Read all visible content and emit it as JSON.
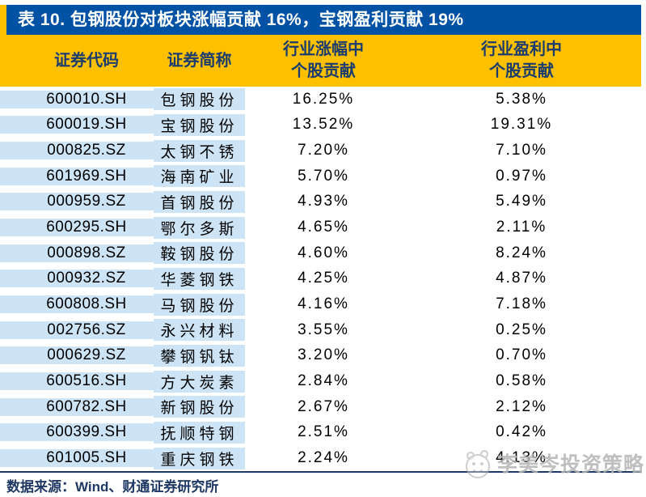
{
  "title": "表 10. 包钢股份对板块涨幅贡献 16%，宝钢盈利贡献 19%",
  "table": {
    "headers": {
      "code": "证券代码",
      "name": "证券简称",
      "gain_line1": "行业涨幅中",
      "gain_line2": "个股贡献",
      "profit_line1": "行业盈利中",
      "profit_line2": "个股贡献"
    },
    "rows": [
      {
        "code": "600010.SH",
        "name": "包钢股份",
        "gain": "16.25%",
        "profit": "5.38%"
      },
      {
        "code": "600019.SH",
        "name": "宝钢股份",
        "gain": "13.52%",
        "profit": "19.31%"
      },
      {
        "code": "000825.SZ",
        "name": "太钢不锈",
        "gain": "7.20%",
        "profit": "7.10%"
      },
      {
        "code": "601969.SH",
        "name": "海南矿业",
        "gain": "5.70%",
        "profit": "0.97%"
      },
      {
        "code": "000959.SZ",
        "name": "首钢股份",
        "gain": "4.93%",
        "profit": "5.49%"
      },
      {
        "code": "600295.SH",
        "name": "鄂尔多斯",
        "gain": "4.65%",
        "profit": "2.11%"
      },
      {
        "code": "000898.SZ",
        "name": "鞍钢股份",
        "gain": "4.60%",
        "profit": "8.24%"
      },
      {
        "code": "000932.SZ",
        "name": "华菱钢铁",
        "gain": "4.25%",
        "profit": "4.87%"
      },
      {
        "code": "600808.SH",
        "name": "马钢股份",
        "gain": "4.16%",
        "profit": "7.18%"
      },
      {
        "code": "002756.SZ",
        "name": "永兴材料",
        "gain": "3.55%",
        "profit": "0.25%"
      },
      {
        "code": "000629.SZ",
        "name": "攀钢钒钛",
        "gain": "3.20%",
        "profit": "0.70%"
      },
      {
        "code": "600516.SH",
        "name": "方大炭素",
        "gain": "2.84%",
        "profit": "0.58%"
      },
      {
        "code": "600782.SH",
        "name": "新钢股份",
        "gain": "2.67%",
        "profit": "2.12%"
      },
      {
        "code": "600399.SH",
        "name": "抚顺特钢",
        "gain": "2.51%",
        "profit": "0.42%"
      },
      {
        "code": "601005.SH",
        "name": "重庆钢铁",
        "gain": "2.24%",
        "profit": "4.13%"
      }
    ]
  },
  "footer": {
    "source": "数据来源：Wind、财通证券研究所"
  },
  "watermark": {
    "text": "李美岑投资策略",
    "logo": "panda-face-icon"
  },
  "colors": {
    "title_bg": "#0151A4",
    "title_text": "#FFFFFF",
    "header_bg": "#FFC000",
    "header_text": "#1A3C6E",
    "row_bg": "#CDE4F6",
    "rule": "#1F3864",
    "footer_text": "#1F3864",
    "watermark_gray": "#B4B4B4"
  }
}
